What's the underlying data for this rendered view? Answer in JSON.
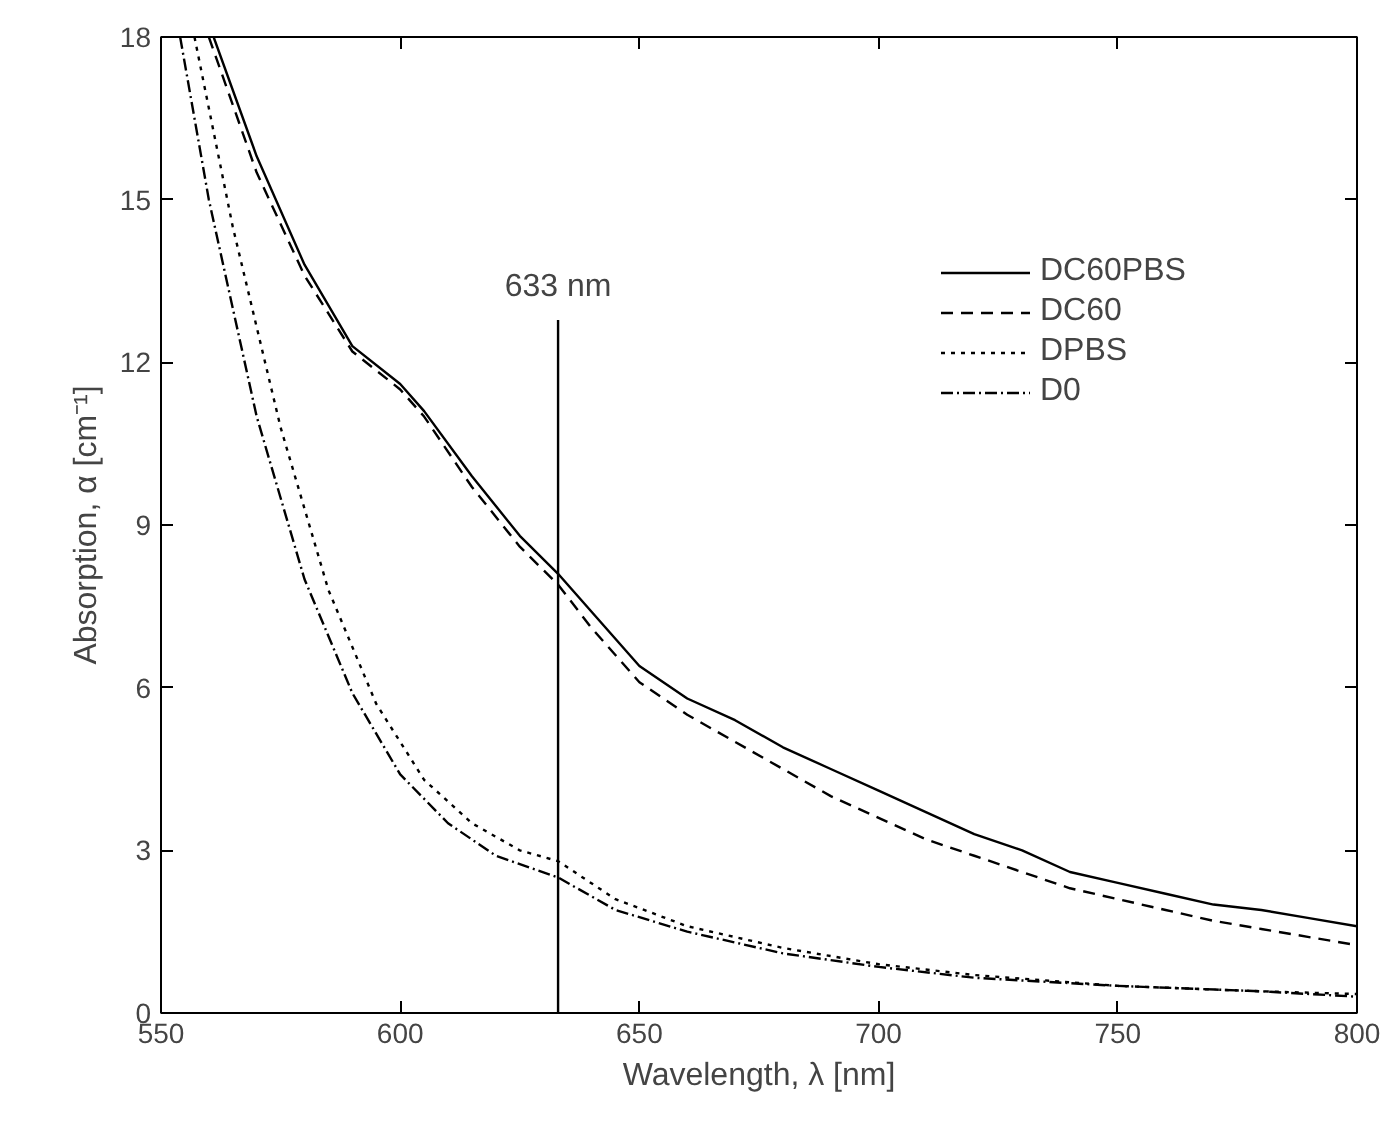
{
  "chart_data": {
    "type": "line",
    "xlabel": "Wavelength, λ [nm]",
    "ylabel": "Absorption, α [cm⁻¹]",
    "xlim": [
      550,
      800
    ],
    "xticks": [
      550,
      600,
      650,
      700,
      750,
      800
    ],
    "ylim": [
      0,
      18
    ],
    "yticks": [
      0,
      3,
      6,
      9,
      12,
      15,
      18
    ],
    "grid": false,
    "legend": "right",
    "marker": "none",
    "ref_lines": [
      {
        "axis": "x",
        "value": 633,
        "label": "633 nm",
        "color": "#000000"
      }
    ],
    "series": [
      {
        "name": "DC60PBS",
        "color": "#000000",
        "line_style": "solid",
        "x": [
          561,
          570,
          580,
          590,
          600,
          605,
          615,
          625,
          633,
          640,
          650,
          660,
          670,
          680,
          690,
          700,
          710,
          720,
          730,
          740,
          750,
          760,
          770,
          780,
          790,
          800
        ],
        "values": [
          18,
          15.8,
          13.8,
          12.3,
          11.6,
          11.1,
          9.9,
          8.8,
          8.1,
          7.4,
          6.4,
          5.8,
          5.4,
          4.9,
          4.5,
          4.1,
          3.7,
          3.3,
          3.0,
          2.6,
          2.4,
          2.2,
          2.0,
          1.9,
          1.75,
          1.6
        ]
      },
      {
        "name": "DC60",
        "color": "#000000",
        "line_style": "dashed",
        "x": [
          560,
          570,
          580,
          590,
          600,
          605,
          615,
          625,
          633,
          640,
          650,
          660,
          670,
          680,
          690,
          700,
          710,
          720,
          730,
          740,
          750,
          760,
          770,
          780,
          790,
          800
        ],
        "values": [
          18,
          15.5,
          13.6,
          12.2,
          11.5,
          11.0,
          9.7,
          8.6,
          7.9,
          7.1,
          6.1,
          5.5,
          5.0,
          4.5,
          4.0,
          3.6,
          3.2,
          2.9,
          2.6,
          2.3,
          2.1,
          1.9,
          1.7,
          1.55,
          1.4,
          1.25
        ]
      },
      {
        "name": "DPBS",
        "color": "#000000",
        "line_style": "dotted",
        "x": [
          557,
          565,
          575,
          585,
          595,
          605,
          615,
          625,
          633,
          645,
          660,
          680,
          700,
          720,
          750,
          780,
          800
        ],
        "values": [
          18,
          14.5,
          10.8,
          7.8,
          5.7,
          4.3,
          3.5,
          3.0,
          2.8,
          2.1,
          1.6,
          1.2,
          0.9,
          0.7,
          0.5,
          0.4,
          0.35
        ]
      },
      {
        "name": "D0",
        "color": "#000000",
        "line_style": "dashdot",
        "x": [
          554,
          560,
          570,
          580,
          590,
          600,
          610,
          620,
          633,
          645,
          660,
          680,
          700,
          720,
          750,
          780,
          800
        ],
        "values": [
          18,
          15,
          11,
          8.0,
          5.9,
          4.4,
          3.5,
          2.9,
          2.5,
          1.9,
          1.5,
          1.1,
          0.85,
          0.65,
          0.5,
          0.4,
          0.3
        ]
      }
    ]
  }
}
